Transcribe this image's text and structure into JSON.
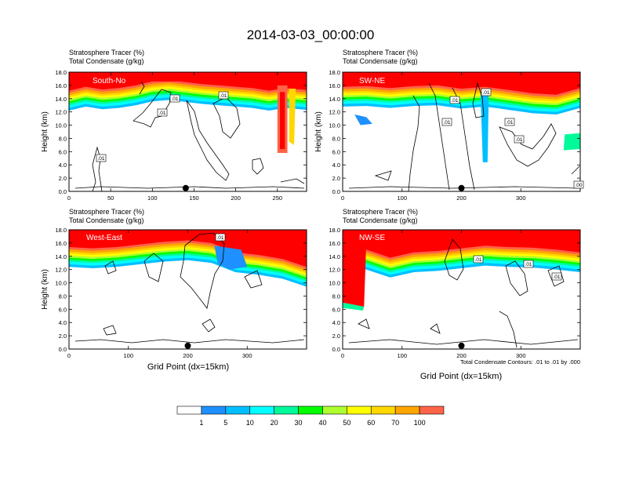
{
  "figure": {
    "title": "2014-03-03_00:00:00",
    "footnote": "Total Condensate Contours: .01 to .01 by .000"
  },
  "chart_data": [
    {
      "type": "heatmap",
      "label": "South-North",
      "label_text": "South-No",
      "subtitle_line1": "Stratosphere Tracer   (%)",
      "subtitle_line2": "Total Condensate   (g/kg)",
      "ylabel": "Height (km)",
      "xlabel": "",
      "xlim": [
        0,
        285
      ],
      "ylim": [
        0,
        18
      ],
      "xticks": [
        0,
        50,
        100,
        150,
        200,
        250
      ],
      "yticks": [
        "0.0",
        "2.0",
        "4.0",
        "6.0",
        "8.0",
        "10.0",
        "12.0",
        "14.0",
        "16.0",
        "18.0"
      ],
      "marker_x": 140,
      "contour_labels": [
        ".01",
        ".01",
        ".01",
        ".01"
      ],
      "tracer_profile": [
        [
          0,
          15.2
        ],
        [
          20,
          15.8
        ],
        [
          40,
          15.4
        ],
        [
          60,
          15.6
        ],
        [
          80,
          16.0
        ],
        [
          100,
          16.6
        ],
        [
          120,
          16.8
        ],
        [
          140,
          16.5
        ],
        [
          160,
          16.2
        ],
        [
          180,
          16.0
        ],
        [
          200,
          15.8
        ],
        [
          220,
          15.6
        ],
        [
          240,
          15.2
        ],
        [
          260,
          15.6
        ],
        [
          285,
          15.3
        ]
      ]
    },
    {
      "type": "heatmap",
      "label": "SW-NE",
      "label_text": "SW-NE",
      "subtitle_line1": "Stratosphere Tracer   (%)",
      "subtitle_line2": "Total Condensate   (g/kg)",
      "ylabel": "Height (km)",
      "xlabel": "",
      "xlim": [
        0,
        400
      ],
      "ylim": [
        0,
        18
      ],
      "xticks": [
        0,
        100,
        200,
        300
      ],
      "yticks": [
        "0.0",
        "2.0",
        "4.0",
        "6.0",
        "8.0",
        "10.0",
        "12.0",
        "14.0",
        "16.0",
        "18.0"
      ],
      "marker_x": 200,
      "contour_labels": [
        ".01",
        ".01",
        ".01",
        ".01",
        ".01",
        ".00"
      ],
      "tracer_profile": [
        [
          0,
          15.8
        ],
        [
          40,
          15.9
        ],
        [
          80,
          15.6
        ],
        [
          120,
          15.9
        ],
        [
          160,
          16.0
        ],
        [
          200,
          15.5
        ],
        [
          240,
          15.8
        ],
        [
          280,
          15.3
        ],
        [
          320,
          14.8
        ],
        [
          360,
          14.6
        ],
        [
          400,
          15.6
        ]
      ]
    },
    {
      "type": "heatmap",
      "label": "West-East",
      "label_text": "West-East",
      "subtitle_line1": "Stratosphere Tracer   (%)",
      "subtitle_line2": "Total Condensate   (g/kg)",
      "ylabel": "Height (km)",
      "xlabel": "Grid Point (dx=15km)",
      "xlim": [
        0,
        400
      ],
      "ylim": [
        0,
        18
      ],
      "xticks": [
        0,
        100,
        200,
        300
      ],
      "yticks": [
        "0.0",
        "2.0",
        "4.0",
        "6.0",
        "8.0",
        "10.0",
        "12.0",
        "14.0",
        "16.0",
        "18.0"
      ],
      "marker_x": 200,
      "contour_labels": [
        ".01"
      ],
      "tracer_profile": [
        [
          0,
          15.4
        ],
        [
          40,
          15.2
        ],
        [
          80,
          15.4
        ],
        [
          120,
          15.8
        ],
        [
          160,
          16.2
        ],
        [
          200,
          16.4
        ],
        [
          240,
          16.0
        ],
        [
          280,
          14.6
        ],
        [
          320,
          14.2
        ],
        [
          360,
          13.6
        ],
        [
          400,
          12.4
        ]
      ]
    },
    {
      "type": "heatmap",
      "label": "NW-SE",
      "label_text": "NW-SE",
      "subtitle_line1": "Stratosphere Tracer   (%)",
      "subtitle_line2": "Total Condensate   (g/kg)",
      "ylabel": "",
      "xlabel": "Grid Point (dx=15km)",
      "xlim": [
        0,
        400
      ],
      "ylim": [
        0,
        18
      ],
      "xticks": [
        0,
        100,
        200,
        300
      ],
      "yticks": [
        "0.0",
        "2.0",
        "4.0",
        "6.0",
        "8.0",
        "10.0",
        "12.0",
        "14.0",
        "16.0",
        "18.0"
      ],
      "marker_x": 200,
      "contour_labels": [
        ".01",
        ".01",
        ".01"
      ],
      "tracer_profile": [
        [
          0,
          15.4
        ],
        [
          40,
          15.0
        ],
        [
          80,
          13.8
        ],
        [
          120,
          14.6
        ],
        [
          160,
          14.8
        ],
        [
          200,
          15.2
        ],
        [
          240,
          15.6
        ],
        [
          280,
          15.4
        ],
        [
          320,
          15.3
        ],
        [
          360,
          15.0
        ],
        [
          400,
          14.6
        ]
      ]
    }
  ],
  "colorbar": {
    "labels": [
      "1",
      "5",
      "10",
      "20",
      "30",
      "40",
      "50",
      "60",
      "70",
      "100"
    ],
    "colors": [
      "#ffffff",
      "#1e90ff",
      "#00bfff",
      "#00ffff",
      "#00fa9a",
      "#00ff00",
      "#adff2f",
      "#ffff00",
      "#ffd700",
      "#ffa500",
      "#ff6347",
      "#ff0000"
    ]
  }
}
